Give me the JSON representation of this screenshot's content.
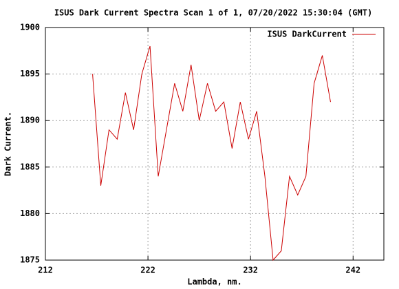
{
  "chart_data": {
    "type": "line",
    "title": "ISUS Dark Current Spectra Scan 1 of 1, 07/20/2022 15:30:04 (GMT)",
    "x_label": "Lambda, nm.",
    "y_label": "Dark Current.",
    "x": [
      216.6,
      217.4,
      218.2,
      219.0,
      219.8,
      220.6,
      221.4,
      222.2,
      223.0,
      223.8,
      224.6,
      225.4,
      226.2,
      227.0,
      227.8,
      228.6,
      229.4,
      230.2,
      231.0,
      231.8,
      232.6,
      233.4,
      234.2,
      235.0,
      235.8,
      236.6,
      237.4,
      238.2,
      239.0,
      239.8
    ],
    "series": [
      {
        "name": "ISUS DarkCurrent",
        "color": "#cc0000",
        "values": [
          1895,
          1883,
          1889,
          1888,
          1893,
          1889,
          1895,
          1898,
          1884,
          1889,
          1894,
          1891,
          1896,
          1890,
          1894,
          1891,
          1892,
          1887,
          1892,
          1888,
          1891,
          1884,
          1875,
          1876,
          1884,
          1882,
          1884,
          1894,
          1897,
          1892
        ]
      }
    ],
    "xlim": [
      212,
      245
    ],
    "xticks": [
      212,
      222,
      232,
      242
    ],
    "ylim": [
      1875,
      1900
    ],
    "yticks": [
      1875,
      1880,
      1885,
      1890,
      1895,
      1900
    ],
    "grid": true,
    "legend": "top-right"
  }
}
